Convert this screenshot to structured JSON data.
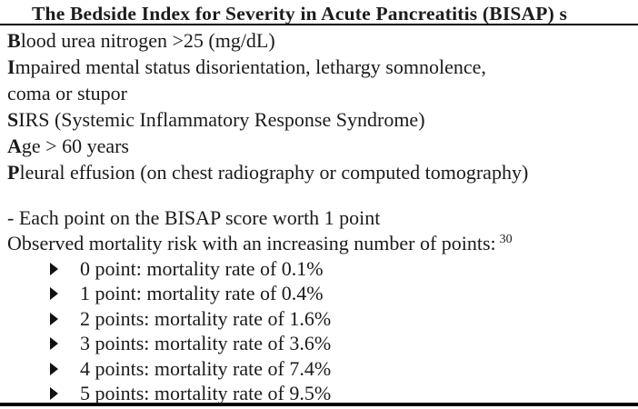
{
  "table": {
    "title": "The Bedside Index for Severity in Acute Pancreatitis (BISAP) s",
    "criteria": [
      {
        "initial": "B",
        "text": "lood urea nitrogen >25 (mg/dL)"
      },
      {
        "initial": "I",
        "text": "mpaired mental status disorientation, lethargy somnolence,",
        "text2": "coma or stupor"
      },
      {
        "initial": "S",
        "text": "IRS (Systemic Inflammatory Response Syndrome)"
      },
      {
        "initial": "A",
        "text": "ge > 60 years"
      },
      {
        "initial": "P",
        "text": "leural effusion (on chest radiography or computed tomography)"
      }
    ],
    "notes": {
      "line1": "- Each point on the BISAP score worth 1 point",
      "line2": "Observed mortality risk with an increasing number of points:",
      "reference": "30"
    },
    "bullet_icon": "right-triangle",
    "mortality_rates": [
      "0 point: mortality rate of 0.1%",
      "1 point: mortality rate of 0.4%",
      "2 points: mortality rate of 1.6%",
      "3 points: mortality rate of 3.6%",
      "4 points: mortality rate of 7.4%",
      "5 points: mortality rate of 9.5%"
    ],
    "colors": {
      "text": "#1a1a1a",
      "rule": "#000000",
      "background": "#ffffff"
    }
  }
}
